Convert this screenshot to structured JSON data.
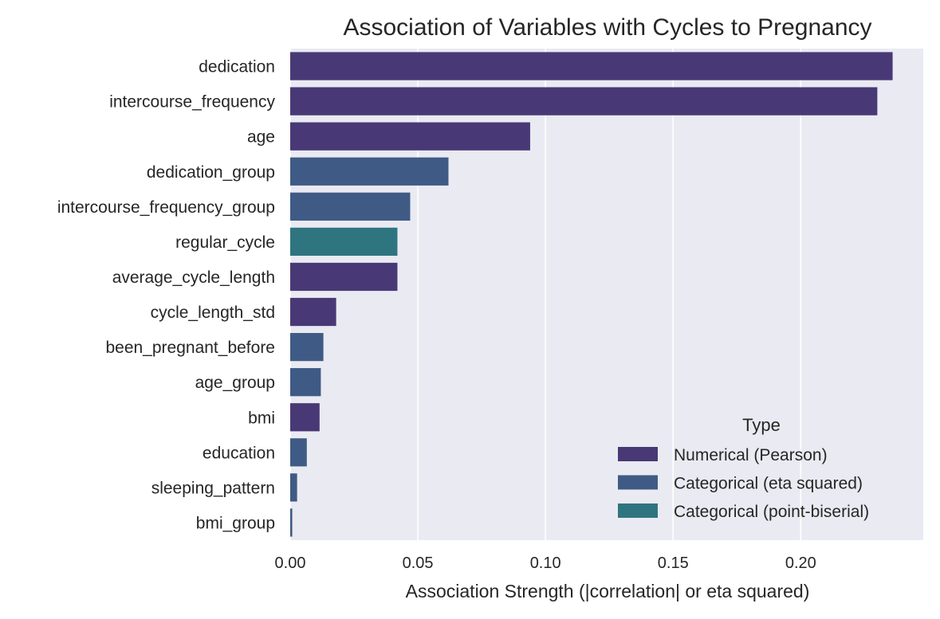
{
  "chart_data": {
    "type": "bar",
    "orientation": "horizontal",
    "title": "Association of Variables with Cycles to Pregnancy",
    "xlabel": "Association Strength (|correlation| or eta squared)",
    "ylabel": "",
    "xlim": [
      0,
      0.248
    ],
    "xticks": [
      0.0,
      0.05,
      0.1,
      0.15,
      0.2
    ],
    "xtick_labels": [
      "0.00",
      "0.05",
      "0.10",
      "0.15",
      "0.20"
    ],
    "grid": "vertical",
    "legend": {
      "title": "Type",
      "position": "lower-right",
      "entries": [
        "Numerical (Pearson)",
        "Categorical (eta squared)",
        "Categorical (point-biserial)"
      ]
    },
    "type_colors": {
      "Numerical (Pearson)": "#483976",
      "Categorical (eta squared)": "#3f5b85",
      "Categorical (point-biserial)": "#2e7580"
    },
    "plot_background": "#eaeaf2",
    "bars": [
      {
        "label": "dedication",
        "value": 0.236,
        "type": "Numerical (Pearson)"
      },
      {
        "label": "intercourse_frequency",
        "value": 0.23,
        "type": "Numerical (Pearson)"
      },
      {
        "label": "age",
        "value": 0.094,
        "type": "Numerical (Pearson)"
      },
      {
        "label": "dedication_group",
        "value": 0.062,
        "type": "Categorical (eta squared)"
      },
      {
        "label": "intercourse_frequency_group",
        "value": 0.047,
        "type": "Categorical (eta squared)"
      },
      {
        "label": "regular_cycle",
        "value": 0.042,
        "type": "Categorical (point-biserial)"
      },
      {
        "label": "average_cycle_length",
        "value": 0.042,
        "type": "Numerical (Pearson)"
      },
      {
        "label": "cycle_length_std",
        "value": 0.018,
        "type": "Numerical (Pearson)"
      },
      {
        "label": "been_pregnant_before",
        "value": 0.013,
        "type": "Categorical (eta squared)"
      },
      {
        "label": "age_group",
        "value": 0.012,
        "type": "Categorical (eta squared)"
      },
      {
        "label": "bmi",
        "value": 0.0115,
        "type": "Numerical (Pearson)"
      },
      {
        "label": "education",
        "value": 0.0065,
        "type": "Categorical (eta squared)"
      },
      {
        "label": "sleeping_pattern",
        "value": 0.0027,
        "type": "Categorical (eta squared)"
      },
      {
        "label": "bmi_group",
        "value": 0.0008,
        "type": "Categorical (eta squared)"
      }
    ]
  }
}
